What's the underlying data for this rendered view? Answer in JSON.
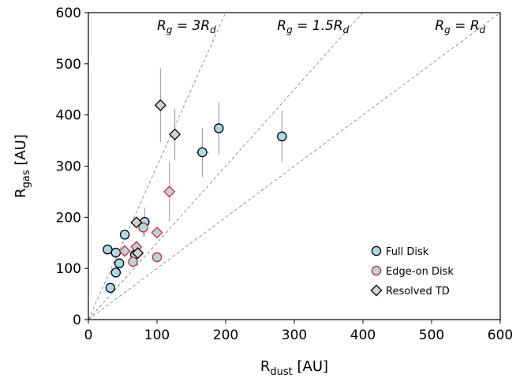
{
  "chart_data": {
    "type": "scatter",
    "xlabel": {
      "base": "R",
      "sub": "dust",
      "unit": "[AU]"
    },
    "ylabel": {
      "base": "R",
      "sub": "gas",
      "unit": "[AU]"
    },
    "xlim": [
      0,
      600
    ],
    "ylim": [
      0,
      600
    ],
    "xticks": [
      "0",
      "100",
      "200",
      "300",
      "400",
      "500",
      "600"
    ],
    "yticks": [
      "0",
      "100",
      "200",
      "300",
      "400",
      "500",
      "600"
    ],
    "grid": false,
    "legend_position": "lower-right",
    "reference_lines": [
      {
        "slope": 3,
        "label": {
          "lhs": "R",
          "lhs_sub": "g",
          "eq": " = ",
          "rhs": "3R",
          "rhs_sub": "d"
        },
        "label_at": [
          100,
          575
        ]
      },
      {
        "slope": 1.5,
        "label": {
          "lhs": "R",
          "lhs_sub": "g",
          "eq": " = ",
          "rhs": "1.5R",
          "rhs_sub": "d"
        },
        "label_at": [
          275,
          575
        ]
      },
      {
        "slope": 1,
        "label": {
          "lhs": "R",
          "lhs_sub": "g",
          "eq": " = ",
          "rhs": "R",
          "rhs_sub": "d"
        },
        "label_at": [
          505,
          575
        ]
      }
    ],
    "series": [
      {
        "name": "Full Disk",
        "marker": "circle",
        "color": "#add8e6",
        "edge": "#000000",
        "points": [
          {
            "x": 28,
            "y": 137
          },
          {
            "x": 32,
            "y": 62
          },
          {
            "x": 40,
            "y": 131
          },
          {
            "x": 40,
            "y": 92
          },
          {
            "x": 45,
            "y": 110
          },
          {
            "x": 53,
            "y": 166
          },
          {
            "x": 68,
            "y": 127
          },
          {
            "x": 82,
            "y": 191,
            "yerr": 28
          },
          {
            "x": 166,
            "y": 327,
            "yerr": 48,
            "xerr": 10
          },
          {
            "x": 190,
            "y": 374,
            "yerr": 52
          },
          {
            "x": 282,
            "y": 358,
            "yerr": 50,
            "xerr": 8
          }
        ]
      },
      {
        "name": "Edge-on Disk",
        "marker": "mixed",
        "color": "#add8e6",
        "edge": "#e02020",
        "points": [
          {
            "x": 53,
            "y": 134,
            "marker": "diamond"
          },
          {
            "x": 65,
            "y": 113,
            "marker": "circle"
          },
          {
            "x": 70,
            "y": 142,
            "marker": "diamond"
          },
          {
            "x": 80,
            "y": 180,
            "marker": "circle",
            "yerr": 18
          },
          {
            "x": 100,
            "y": 122,
            "marker": "circle"
          },
          {
            "x": 100,
            "y": 170,
            "marker": "diamond"
          },
          {
            "x": 118,
            "y": 250,
            "marker": "diamond",
            "yerr": 58
          }
        ]
      },
      {
        "name": "Resolved TD",
        "marker": "diamond",
        "color": "#d3d3d3",
        "edge": "#000000",
        "points": [
          {
            "x": 70,
            "y": 190,
            "xerr": 8
          },
          {
            "x": 72,
            "y": 130
          },
          {
            "x": 105,
            "y": 419,
            "yerr": 72
          },
          {
            "x": 126,
            "y": 362,
            "yerr": 50
          }
        ]
      }
    ]
  }
}
